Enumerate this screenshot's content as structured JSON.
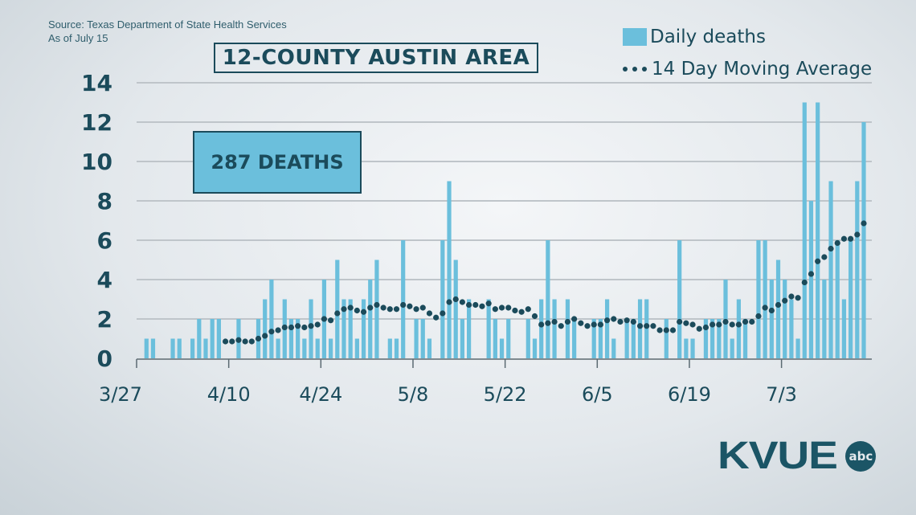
{
  "source": {
    "line1": "Source: Texas Department of State Health Services",
    "line2": "As of July 15"
  },
  "title": "12-COUNTY AUSTIN AREA",
  "total_box": "287 DEATHS",
  "logo": {
    "text": "KVUE",
    "network": "abc"
  },
  "colors": {
    "bars": "#6bbfdc",
    "text": "#1b4b5b",
    "dots": "#1b4b5b",
    "grid": "#bfc5ca"
  },
  "chart_data": {
    "type": "bar",
    "x_start": "3/27",
    "x_ticks": [
      "3/27",
      "4/10",
      "4/24",
      "5/8",
      "5/22",
      "6/5",
      "6/19",
      "7/3"
    ],
    "y_ticks": [
      0,
      2,
      4,
      6,
      8,
      10,
      12,
      14
    ],
    "ylim": [
      0,
      14
    ],
    "grid": true,
    "legend_placement": "top-right",
    "series": [
      {
        "name": "Daily deaths",
        "type": "bar",
        "values": [
          0,
          1,
          1,
          0,
          0,
          1,
          1,
          0,
          1,
          2,
          1,
          2,
          2,
          0,
          0,
          2,
          0,
          0,
          2,
          3,
          4,
          1,
          3,
          2,
          2,
          1,
          3,
          1,
          4,
          1,
          5,
          3,
          3,
          1,
          3,
          4,
          5,
          0,
          1,
          1,
          6,
          0,
          2,
          2,
          1,
          0,
          6,
          9,
          5,
          2,
          3,
          0,
          0,
          3,
          2,
          1,
          2,
          0,
          0,
          2,
          1,
          3,
          6,
          3,
          0,
          3,
          2,
          0,
          0,
          2,
          2,
          3,
          1,
          0,
          2,
          2,
          3,
          3,
          0,
          0,
          2,
          0,
          6,
          1,
          1,
          0,
          2,
          2,
          2,
          4,
          1,
          3,
          2,
          0,
          6,
          6,
          4,
          5,
          4,
          3,
          1,
          13,
          8,
          13,
          4,
          9,
          6,
          3,
          6,
          9,
          12
        ]
      },
      {
        "name": "14 Day Moving Average",
        "type": "dotted-line",
        "window": 14
      }
    ]
  }
}
